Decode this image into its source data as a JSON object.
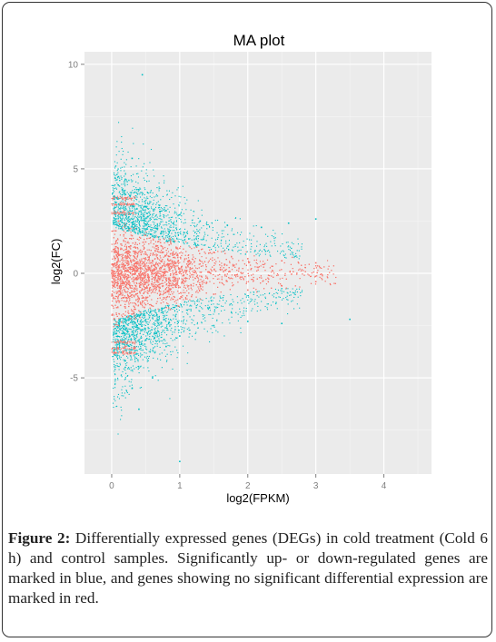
{
  "chart_data": {
    "type": "scatter",
    "title": "MA plot",
    "xlabel": "log2(FPKM)",
    "ylabel": "log2(FC)",
    "xlim": [
      -0.4,
      4.7
    ],
    "ylim": [
      -9.6,
      10.6
    ],
    "x_ticks": [
      0,
      1,
      2,
      3,
      4
    ],
    "y_ticks": [
      -5,
      0,
      5,
      10
    ],
    "x_tick_labels": [
      "0",
      "1",
      "2",
      "3",
      "4"
    ],
    "y_tick_labels": [
      "-5",
      "0",
      "5",
      "10"
    ],
    "grid": true,
    "legend": "none",
    "series": [
      {
        "color": "#00BFC4",
        "description_of_spread": "upper band |log2FC| > ~1.5, densest x 0-0.6",
        "approx_points": [
          [
            0.2,
            4.5
          ],
          [
            0.3,
            5.5
          ],
          [
            0.4,
            4.0
          ],
          [
            0.5,
            3.2
          ],
          [
            0.8,
            3.0
          ],
          [
            1.0,
            2.8
          ],
          [
            1.3,
            2.5
          ],
          [
            1.7,
            2.3
          ],
          [
            2.2,
            2.2
          ],
          [
            2.6,
            2.4
          ],
          [
            3.0,
            2.6
          ],
          [
            0.45,
            9.5
          ],
          [
            0.2,
            -4.5
          ],
          [
            0.3,
            -5.5
          ],
          [
            0.4,
            -6.5
          ],
          [
            0.6,
            -5.0
          ],
          [
            0.8,
            -3.5
          ],
          [
            1.0,
            -3.0
          ],
          [
            1.5,
            -2.5
          ],
          [
            2.0,
            -2.3
          ],
          [
            2.5,
            -2.4
          ],
          [
            1.0,
            -9.0
          ],
          [
            3.5,
            -2.2
          ]
        ]
      },
      {
        "color": "#F8766D",
        "description_of_spread": "central band around log2FC 0, width narrows with x, up to x ~ 4.5",
        "approx_points": [
          [
            0.0,
            0.0
          ],
          [
            0.1,
            2.5
          ],
          [
            0.1,
            -2.5
          ],
          [
            0.3,
            1.8
          ],
          [
            0.3,
            -1.8
          ],
          [
            0.5,
            1.5
          ],
          [
            0.5,
            -1.5
          ],
          [
            1.0,
            1.2
          ],
          [
            1.0,
            -1.2
          ],
          [
            1.5,
            1.0
          ],
          [
            1.5,
            -1.0
          ],
          [
            2.0,
            0.7
          ],
          [
            2.0,
            -0.8
          ],
          [
            2.5,
            0.6
          ],
          [
            2.5,
            -0.6
          ],
          [
            3.0,
            0.5
          ],
          [
            3.0,
            -0.4
          ],
          [
            0.2,
            3.5
          ],
          [
            0.2,
            -3.5
          ]
        ]
      }
    ]
  },
  "caption": {
    "label": "Figure 2:",
    "text": " Differentially expressed genes (DEGs) in cold treatment (Cold 6 h) and control samples. Significantly up- or down-regulated genes are marked in blue, and genes showing no significant differential expression are marked in red."
  },
  "colors": {
    "panel_bg": "#EBEBEB",
    "grid": "#FFFFFF",
    "significant": "#00BFC4",
    "not_significant": "#F8766D"
  }
}
